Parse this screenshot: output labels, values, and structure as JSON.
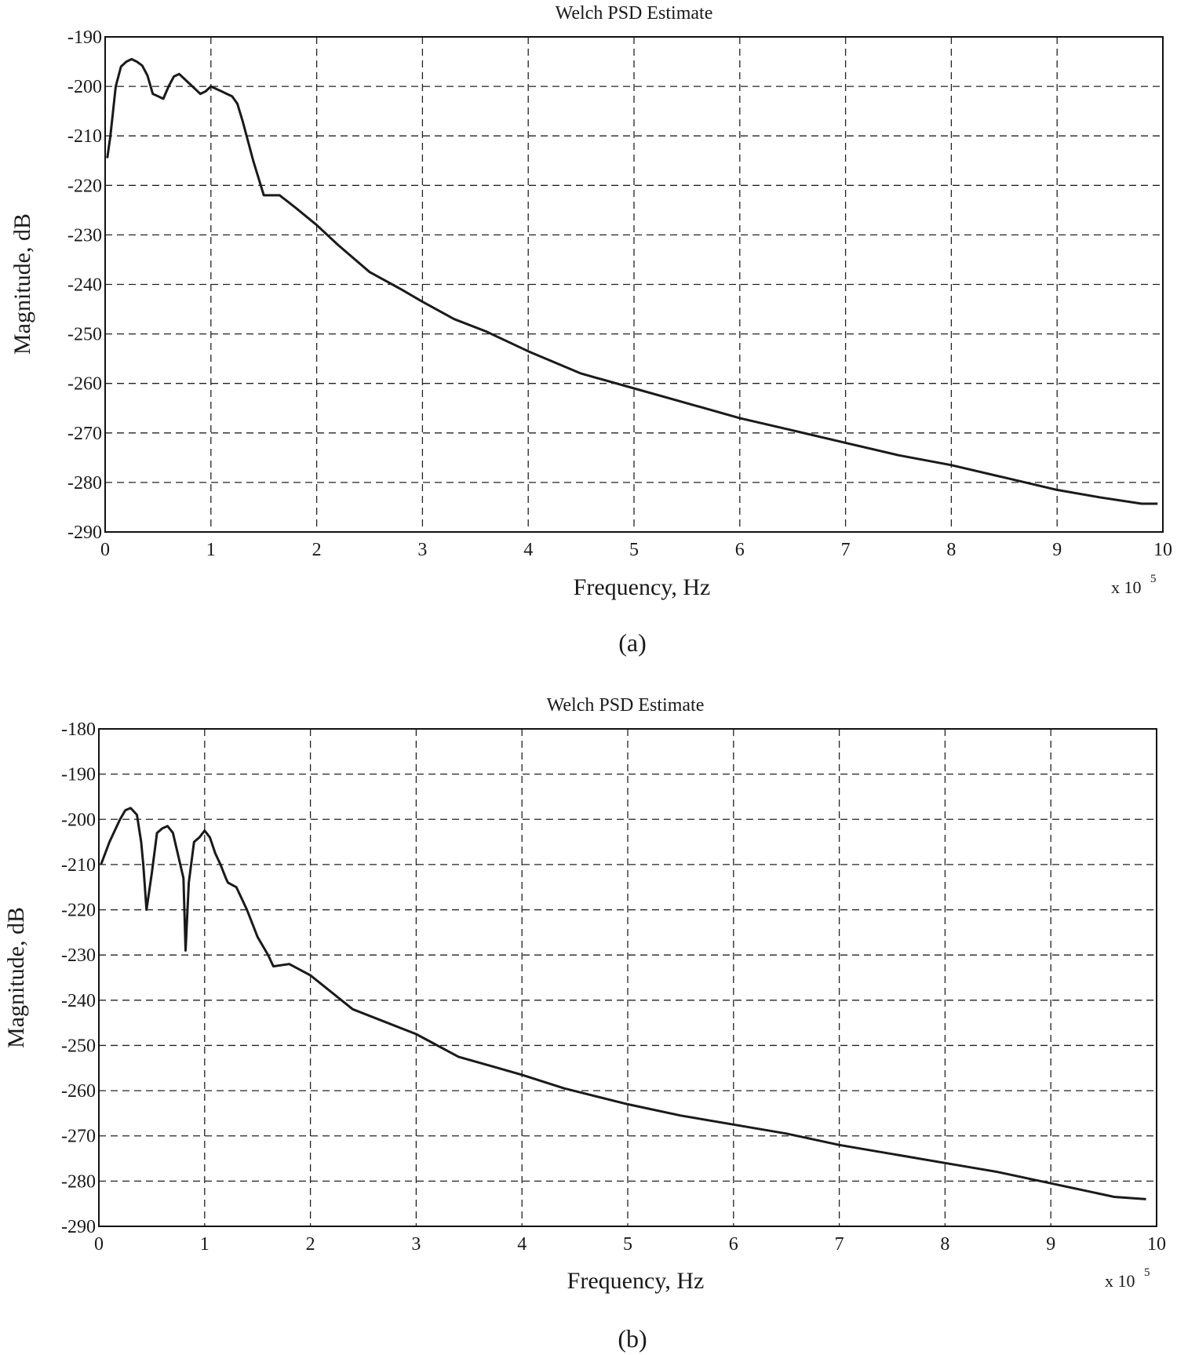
{
  "chart_data": [
    {
      "type": "line",
      "title": "Welch PSD Estimate",
      "xlabel": "Frequency, Hz",
      "ylabel": "Magnitude, dB",
      "x_multiplier_base": "x 10",
      "x_multiplier_exp": "5",
      "caption": "(a)",
      "xlim": [
        0,
        10
      ],
      "ylim": [
        -290,
        -190
      ],
      "xticks": [
        "0",
        "1",
        "2",
        "3",
        "4",
        "5",
        "6",
        "7",
        "8",
        "9",
        "10"
      ],
      "yticks": [
        "-190",
        "-200",
        "-210",
        "-220",
        "-230",
        "-240",
        "-250",
        "-260",
        "-270",
        "-280",
        "-290"
      ],
      "xtick_values": [
        0,
        1,
        2,
        3,
        4,
        5,
        6,
        7,
        8,
        9,
        10
      ],
      "ytick_values": [
        -190,
        -200,
        -210,
        -220,
        -230,
        -240,
        -250,
        -260,
        -270,
        -280,
        -290
      ],
      "grid": true,
      "series": [
        {
          "color": "#1a1a1a",
          "x": [
            0.02,
            0.05,
            0.1,
            0.15,
            0.2,
            0.25,
            0.3,
            0.35,
            0.4,
            0.45,
            0.5,
            0.55,
            0.6,
            0.65,
            0.7,
            0.75,
            0.8,
            0.85,
            0.9,
            0.95,
            1.0,
            1.05,
            1.1,
            1.15,
            1.2,
            1.25,
            1.3,
            1.4,
            1.5,
            1.55,
            1.65,
            1.8,
            2.0,
            2.2,
            2.5,
            2.8,
            3.0,
            3.3,
            3.6,
            4.0,
            4.5,
            5.0,
            5.5,
            6.0,
            6.5,
            7.0,
            7.5,
            8.0,
            8.5,
            9.0,
            9.4,
            9.8,
            9.95
          ],
          "y": [
            -214.5,
            -210,
            -200,
            -196,
            -195,
            -194.5,
            -195,
            -195.8,
            -197.8,
            -201.5,
            -202,
            -202.5,
            -200,
            -198,
            -197.5,
            -198.5,
            -199.5,
            -200.5,
            -201.5,
            -201,
            -200,
            -200.5,
            -201,
            -201.5,
            -202,
            -203.5,
            -207,
            -215,
            -222,
            -222,
            -222,
            -224.5,
            -228,
            -232,
            -237.5,
            -241,
            -243.5,
            -247,
            -249.5,
            -253.5,
            -258,
            -261,
            -264,
            -267,
            -269.5,
            -272,
            -274.5,
            -276.5,
            -279,
            -281.5,
            -283,
            -284.3,
            -284.3
          ]
        }
      ]
    },
    {
      "type": "line",
      "title": "Welch PSD Estimate",
      "xlabel": "Frequency, Hz",
      "ylabel": "Magnitude, dB",
      "x_multiplier_base": "x 10",
      "x_multiplier_exp": "5",
      "caption": "(b)",
      "xlim": [
        0,
        10
      ],
      "ylim": [
        -290,
        -180
      ],
      "xticks": [
        "0",
        "1",
        "2",
        "3",
        "4",
        "5",
        "6",
        "7",
        "8",
        "9",
        "10"
      ],
      "yticks": [
        "-180",
        "-190",
        "-200",
        "-210",
        "-220",
        "-230",
        "-240",
        "-250",
        "-260",
        "-270",
        "-280",
        "-290"
      ],
      "xtick_values": [
        0,
        1,
        2,
        3,
        4,
        5,
        6,
        7,
        8,
        9,
        10
      ],
      "ytick_values": [
        -180,
        -190,
        -200,
        -210,
        -220,
        -230,
        -240,
        -250,
        -260,
        -270,
        -280,
        -290
      ],
      "grid": true,
      "series": [
        {
          "color": "#1a1a1a",
          "x": [
            0.02,
            0.1,
            0.2,
            0.25,
            0.3,
            0.32,
            0.36,
            0.4,
            0.42,
            0.45,
            0.5,
            0.55,
            0.6,
            0.65,
            0.7,
            0.8,
            0.82,
            0.85,
            0.9,
            0.95,
            1.0,
            1.05,
            1.1,
            1.15,
            1.2,
            1.22,
            1.3,
            1.4,
            1.5,
            1.6,
            1.65,
            1.8,
            2.0,
            2.4,
            3.0,
            3.4,
            4.0,
            4.4,
            5.0,
            5.5,
            6.0,
            6.5,
            7.0,
            7.5,
            8.0,
            8.5,
            9.0,
            9.6,
            9.9
          ],
          "y": [
            -210,
            -205,
            -200,
            -198,
            -197.5,
            -198,
            -199,
            -205,
            -210,
            -220,
            -212,
            -203,
            -202,
            -201.5,
            -203,
            -213,
            -229,
            -214,
            -205,
            -204,
            -202.5,
            -204,
            -207.5,
            -210,
            -213,
            -214,
            -215,
            -220,
            -226,
            -230,
            -232.5,
            -232,
            -234.5,
            -242,
            -247.5,
            -252.5,
            -256.5,
            -259.5,
            -263,
            -265.5,
            -267.5,
            -269.5,
            -272,
            -274,
            -276,
            -278,
            -280.5,
            -283.5,
            -284
          ]
        }
      ]
    }
  ]
}
